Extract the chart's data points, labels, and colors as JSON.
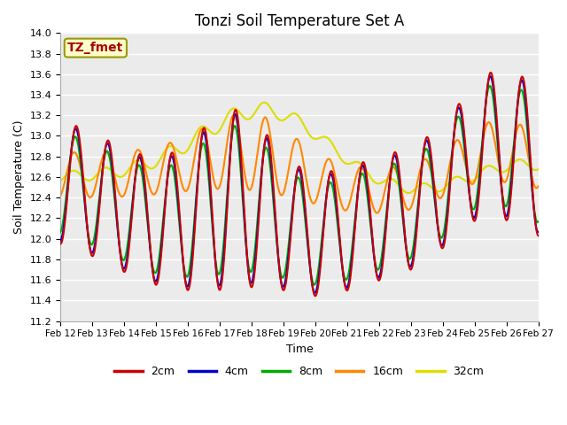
{
  "title": "Tonzi Soil Temperature Set A",
  "xlabel": "Time",
  "ylabel": "Soil Temperature (C)",
  "ylim": [
    11.2,
    14.0
  ],
  "annotation": "TZ_fmet",
  "x_tick_labels": [
    "Feb 12",
    "Feb 13",
    "Feb 14",
    "Feb 15",
    "Feb 16",
    "Feb 17",
    "Feb 18",
    "Feb 19",
    "Feb 20",
    "Feb 21",
    "Feb 22",
    "Feb 23",
    "Feb 24",
    "Feb 25",
    "Feb 26",
    "Feb 27"
  ],
  "colors": {
    "2cm": "#cc0000",
    "4cm": "#0000cc",
    "8cm": "#00aa00",
    "16cm": "#ff8800",
    "32cm": "#dddd00"
  },
  "plot_bg_color": "#ebebeb",
  "n_points": 721
}
